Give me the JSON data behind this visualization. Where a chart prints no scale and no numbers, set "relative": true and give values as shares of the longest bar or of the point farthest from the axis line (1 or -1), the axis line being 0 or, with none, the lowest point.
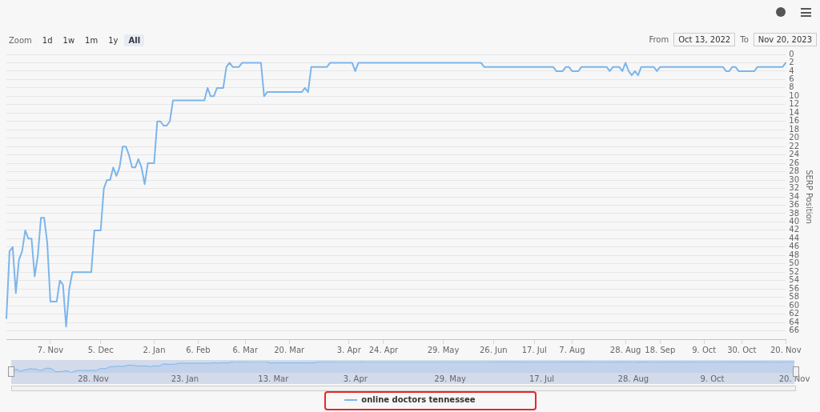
{
  "chart_data": [
    {
      "type": "line",
      "ylabel": "SERP Position",
      "legend": "bottom",
      "grid": "y",
      "ylim": [
        68,
        0
      ],
      "yticks": [
        0,
        2,
        4,
        6,
        8,
        10,
        12,
        14,
        16,
        18,
        20,
        22,
        24,
        26,
        28,
        30,
        32,
        34,
        36,
        38,
        40,
        42,
        44,
        46,
        48,
        50,
        52,
        54,
        56,
        58,
        60,
        62,
        64,
        66
      ],
      "annotations": [
        "Zoom",
        "1d",
        "1w",
        "1m",
        "1y",
        "All",
        "From",
        "Oct 13, 2022",
        "To",
        "Nov 20, 2023"
      ],
      "categories": [
        null,
        null,
        null,
        null,
        null,
        null,
        null,
        null,
        null,
        null,
        null,
        null,
        null,
        null,
        "7. Nov",
        null,
        null,
        null,
        null,
        null,
        null,
        null,
        null,
        null,
        null,
        null,
        null,
        null,
        null,
        null,
        "5. Dec",
        null,
        null,
        null,
        null,
        null,
        null,
        null,
        null,
        null,
        null,
        null,
        null,
        null,
        null,
        null,
        null,
        "2. Jan",
        null,
        null,
        null,
        null,
        null,
        null,
        null,
        null,
        null,
        null,
        null,
        null,
        null,
        "6. Feb",
        null,
        null,
        null,
        null,
        null,
        null,
        null,
        null,
        null,
        null,
        null,
        null,
        null,
        null,
        "6. Mar",
        null,
        null,
        null,
        null,
        null,
        null,
        null,
        null,
        null,
        null,
        null,
        null,
        null,
        "20. Mar",
        null,
        null,
        null,
        null,
        null,
        null,
        null,
        null,
        null,
        null,
        null,
        null,
        null,
        null,
        null,
        null,
        null,
        null,
        "3. Apr",
        null,
        null,
        null,
        null,
        null,
        null,
        null,
        null,
        null,
        null,
        "24. Apr",
        null,
        null,
        null,
        null,
        null,
        null,
        null,
        null,
        null,
        null,
        null,
        null,
        null,
        null,
        null,
        null,
        null,
        null,
        "29. May",
        null,
        null,
        null,
        null,
        null,
        null,
        null,
        null,
        null,
        null,
        null,
        null,
        null,
        null,
        null,
        "26. Jun",
        null,
        null,
        null,
        null,
        null,
        null,
        null,
        null,
        null,
        null,
        null,
        null,
        "17. Jul",
        null,
        null,
        null,
        null,
        null,
        null,
        null,
        null,
        null,
        null,
        null,
        "7. Aug",
        null,
        null,
        null,
        null,
        null,
        null,
        null,
        null,
        null,
        null,
        null,
        null,
        null,
        null,
        null,
        null,
        "28. Aug",
        null,
        null,
        null,
        null,
        null,
        null,
        null,
        null,
        null,
        null,
        "18. Sep",
        null,
        null,
        null,
        null,
        null,
        null,
        null,
        null,
        null,
        null,
        null,
        null,
        null,
        "9. Oct",
        null,
        null,
        null,
        null,
        null,
        null,
        null,
        null,
        null,
        null,
        null,
        "30. Oct",
        null,
        null,
        null,
        null,
        null,
        null,
        null,
        null,
        null,
        null,
        null,
        null,
        null,
        "20. Nov"
      ],
      "series": [
        {
          "name": "online doctors tennessee",
          "color": "#7cb5ec",
          "values": [
            63,
            47,
            46,
            57,
            49,
            47,
            42,
            44,
            44,
            53,
            48,
            39,
            39,
            45,
            59,
            59,
            59,
            54,
            55,
            65,
            56,
            52,
            52,
            52,
            52,
            52,
            52,
            52,
            42,
            42,
            42,
            32,
            30,
            30,
            27,
            29,
            27,
            22,
            22,
            24,
            27,
            27,
            25,
            27,
            31,
            26,
            26,
            26,
            16,
            16,
            17,
            17,
            16,
            11,
            11,
            11,
            11,
            11,
            11,
            11,
            11,
            11,
            11,
            11,
            8,
            10,
            10,
            8,
            8,
            8,
            3,
            2,
            3,
            3,
            3,
            2,
            2,
            2,
            2,
            2,
            2,
            2,
            10,
            9,
            9,
            9,
            9,
            9,
            9,
            9,
            9,
            9,
            9,
            9,
            9,
            8,
            9,
            3,
            3,
            3,
            3,
            3,
            3,
            2,
            2,
            2,
            2,
            2,
            2,
            2,
            2,
            4,
            2,
            2,
            2,
            2,
            2,
            2,
            2,
            2,
            2,
            2,
            2,
            2,
            2,
            2,
            2,
            2,
            2,
            2,
            2,
            2,
            2,
            2,
            2,
            2,
            2,
            2,
            2,
            2,
            2,
            2,
            2,
            2,
            2,
            2,
            2,
            2,
            2,
            2,
            2,
            2,
            3,
            3,
            3,
            3,
            3,
            3,
            3,
            3,
            3,
            3,
            3,
            3,
            3,
            3,
            3,
            3,
            3,
            3,
            3,
            3,
            3,
            3,
            3,
            4,
            4,
            4,
            3,
            3,
            4,
            4,
            4,
            3,
            3,
            3,
            3,
            3,
            3,
            3,
            3,
            3,
            4,
            3,
            3,
            3,
            4,
            2,
            4,
            5,
            4,
            5,
            3,
            3,
            3,
            3,
            3,
            4,
            3,
            3,
            3,
            3,
            3,
            3,
            3,
            3,
            3,
            3,
            3,
            3,
            3,
            3,
            3,
            3,
            3,
            3,
            3,
            3,
            3,
            4,
            4,
            3,
            3,
            4,
            4,
            4,
            4,
            4,
            4,
            3,
            3,
            3,
            3,
            3,
            3,
            3,
            3,
            3,
            2
          ]
        }
      ]
    },
    {
      "type": "area",
      "color": "#7cb5ec",
      "relative": true,
      "tick_labels": "x",
      "categories": [
        null,
        null,
        null,
        null,
        null,
        null,
        null,
        null,
        null,
        null,
        null,
        null,
        null,
        null,
        null,
        null,
        null,
        null,
        null,
        null,
        null,
        null,
        null,
        null,
        null,
        null,
        "28. Nov",
        null,
        null,
        null,
        null,
        null,
        null,
        null,
        null,
        null,
        null,
        null,
        null,
        null,
        null,
        null,
        null,
        null,
        null,
        null,
        null,
        null,
        null,
        null,
        null,
        null,
        null,
        null,
        null,
        "23. Jan",
        null,
        null,
        null,
        null,
        null,
        null,
        null,
        null,
        null,
        null,
        null,
        null,
        null,
        null,
        null,
        null,
        null,
        null,
        null,
        null,
        null,
        null,
        null,
        null,
        null,
        null,
        null,
        "13. Mar",
        null,
        null,
        null,
        null,
        null,
        null,
        null,
        null,
        null,
        null,
        null,
        null,
        null,
        null,
        null,
        null,
        null,
        null,
        null,
        null,
        null,
        null,
        null,
        null,
        null,
        "3. Apr",
        null,
        null,
        null,
        null,
        null,
        null,
        null,
        null,
        null,
        null,
        null,
        null,
        null,
        null,
        null,
        null,
        null,
        null,
        null,
        null,
        null,
        null,
        null,
        null,
        null,
        null,
        null,
        null,
        null,
        "29. May",
        null,
        null,
        null,
        null,
        null,
        null,
        null,
        null,
        null,
        null,
        null,
        null,
        null,
        null,
        null,
        null,
        null,
        null,
        null,
        null,
        null,
        null,
        null,
        null,
        null,
        null,
        null,
        null,
        "17. Jul",
        null,
        null,
        null,
        null,
        null,
        null,
        null,
        null,
        null,
        null,
        null,
        null,
        null,
        null,
        null,
        null,
        null,
        null,
        null,
        null,
        null,
        null,
        null,
        null,
        null,
        null,
        null,
        null,
        "28. Aug",
        null,
        null,
        null,
        null,
        null,
        null,
        null,
        null,
        null,
        null,
        null,
        null,
        null,
        null,
        null,
        null,
        null,
        null,
        null,
        null,
        null,
        null,
        null,
        null,
        "9. Oct",
        null,
        null,
        null,
        null,
        null,
        null,
        null,
        null,
        null,
        null,
        null,
        null,
        null,
        null,
        null,
        null,
        null,
        null,
        null,
        null,
        null,
        null,
        null,
        null,
        null,
        "20. Nov"
      ],
      "values": [
        0.03,
        0.29,
        0.3,
        0.13,
        0.25,
        0.29,
        0.37,
        0.33,
        0.33,
        0.19,
        0.27,
        0.41,
        0.41,
        0.32,
        0.1,
        0.1,
        0.1,
        0.17,
        0.16,
        0,
        0.14,
        0.21,
        0.21,
        0.21,
        0.21,
        0.21,
        0.21,
        0.21,
        0.37,
        0.37,
        0.37,
        0.52,
        0.56,
        0.56,
        0.6,
        0.57,
        0.6,
        0.68,
        0.68,
        0.65,
        0.6,
        0.6,
        0.63,
        0.6,
        0.54,
        0.62,
        0.62,
        0.62,
        0.78,
        0.78,
        0.76,
        0.76,
        0.78,
        0.86,
        0.86,
        0.86,
        0.86,
        0.86,
        0.86,
        0.86,
        0.86,
        0.86,
        0.86,
        0.86,
        0.9,
        0.87,
        0.87,
        0.9,
        0.9,
        0.9,
        0.98,
        1,
        0.98,
        0.98,
        0.98,
        1,
        1,
        1,
        1,
        1,
        1,
        1,
        0.87,
        0.89,
        0.89,
        0.89,
        0.89,
        0.89,
        0.89,
        0.89,
        0.89,
        0.89,
        0.89,
        0.89,
        0.89,
        0.9,
        0.89,
        0.98,
        0.98,
        0.98,
        0.98,
        0.98,
        0.98,
        1,
        1,
        1,
        1,
        1,
        1,
        1,
        1,
        0.97,
        1,
        1,
        1,
        1,
        1,
        1,
        1,
        1,
        1,
        1,
        1,
        1,
        1,
        1,
        1,
        1,
        1,
        1,
        1,
        1,
        1,
        1,
        1,
        1,
        1,
        1,
        1,
        1,
        1,
        1,
        1,
        1,
        1,
        1,
        1,
        1,
        1,
        1,
        1,
        1,
        0.98,
        0.98,
        0.98,
        0.98,
        0.98,
        0.98,
        0.98,
        0.98,
        0.98,
        0.98,
        0.98,
        0.98,
        0.98,
        0.98,
        0.98,
        0.98,
        0.98,
        0.98,
        0.98,
        0.98,
        0.98,
        0.98,
        0.98,
        0.97,
        0.97,
        0.97,
        0.98,
        0.98,
        0.97,
        0.97,
        0.97,
        0.98,
        0.98,
        0.98,
        0.98,
        0.98,
        0.98,
        0.98,
        0.98,
        0.98,
        0.97,
        0.98,
        0.98,
        0.98,
        0.97,
        1,
        0.97,
        0.95,
        0.97,
        0.95,
        0.98,
        0.98,
        0.98,
        0.98,
        0.98,
        0.97,
        0.98,
        0.98,
        0.98,
        0.98,
        0.98,
        0.98,
        0.98,
        0.98,
        0.98,
        0.98,
        0.98,
        0.98,
        0.98,
        0.98,
        0.98,
        0.98,
        0.98,
        0.98,
        0.98,
        0.98,
        0.98,
        0.97,
        0.97,
        0.98,
        0.98,
        0.97,
        0.97,
        0.97,
        0.97,
        0.97,
        0.97,
        0.98,
        0.98,
        0.98,
        0.98,
        0.98,
        0.98,
        0.98,
        0.98,
        0.98,
        1
      ]
    }
  ]
}
